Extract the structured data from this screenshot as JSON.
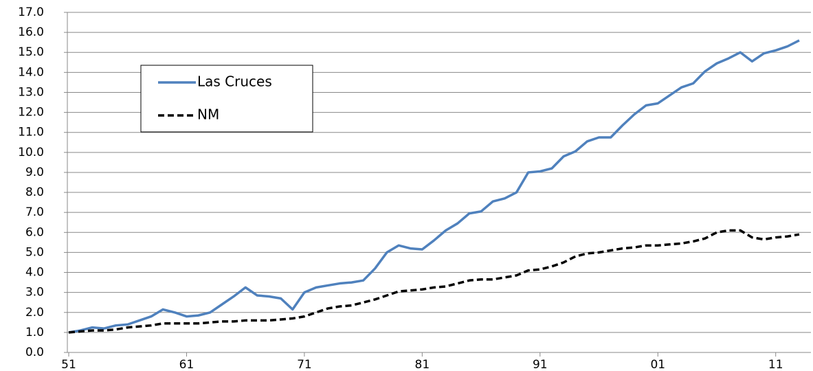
{
  "chart_data": {
    "type": "line",
    "categories": [
      "51",
      null,
      null,
      null,
      null,
      null,
      null,
      null,
      null,
      null,
      "61",
      null,
      null,
      null,
      null,
      null,
      null,
      null,
      null,
      null,
      "71",
      null,
      null,
      null,
      null,
      null,
      null,
      null,
      null,
      null,
      "81",
      null,
      null,
      null,
      null,
      null,
      null,
      null,
      null,
      null,
      "91",
      null,
      null,
      null,
      null,
      null,
      null,
      null,
      null,
      null,
      "01",
      null,
      null,
      null,
      null,
      null,
      null,
      null,
      null,
      null,
      "11",
      null,
      null
    ],
    "series": [
      {
        "name": "Las Cruces",
        "color": "#4f81bd",
        "style": "solid",
        "values": [
          1.0,
          1.1,
          1.25,
          1.2,
          1.35,
          1.4,
          1.6,
          1.8,
          2.15,
          2.0,
          1.8,
          1.85,
          2.0,
          2.4,
          2.8,
          3.25,
          2.85,
          2.8,
          2.7,
          2.15,
          3.0,
          3.25,
          3.35,
          3.45,
          3.5,
          3.6,
          4.2,
          5.0,
          5.35,
          5.2,
          5.15,
          5.6,
          6.1,
          6.45,
          6.95,
          7.05,
          7.55,
          7.7,
          8.0,
          9.0,
          9.05,
          9.2,
          9.8,
          10.05,
          10.55,
          10.75,
          10.75,
          11.35,
          11.9,
          12.35,
          12.45,
          12.85,
          13.25,
          13.45,
          14.05,
          14.45,
          14.7,
          15.0,
          14.55,
          14.95,
          15.1,
          15.3,
          15.6
        ]
      },
      {
        "name": "NM",
        "color": "#000000",
        "style": "dashed",
        "values": [
          1.0,
          1.05,
          1.1,
          1.1,
          1.15,
          1.25,
          1.3,
          1.35,
          1.45,
          1.45,
          1.45,
          1.45,
          1.5,
          1.55,
          1.55,
          1.6,
          1.6,
          1.6,
          1.65,
          1.7,
          1.8,
          2.0,
          2.2,
          2.3,
          2.35,
          2.5,
          2.65,
          2.85,
          3.05,
          3.1,
          3.15,
          3.25,
          3.3,
          3.45,
          3.6,
          3.65,
          3.65,
          3.75,
          3.85,
          4.1,
          4.15,
          4.3,
          4.5,
          4.8,
          4.95,
          5.0,
          5.1,
          5.2,
          5.25,
          5.35,
          5.35,
          5.4,
          5.45,
          5.55,
          5.7,
          6.0,
          6.1,
          6.1,
          5.75,
          5.65,
          5.75,
          5.8,
          5.9
        ]
      }
    ],
    "ylim": [
      0,
      17
    ],
    "yticks": [
      {
        "value": 0,
        "label": "0.0"
      },
      {
        "value": 1,
        "label": "1.0"
      },
      {
        "value": 2,
        "label": "2.0"
      },
      {
        "value": 3,
        "label": "3.0"
      },
      {
        "value": 4,
        "label": "4.0"
      },
      {
        "value": 5,
        "label": "5.0"
      },
      {
        "value": 6,
        "label": "6.0"
      },
      {
        "value": 7,
        "label": "7.0"
      },
      {
        "value": 8,
        "label": "8.0"
      },
      {
        "value": 9,
        "label": "9.0"
      },
      {
        "value": 10,
        "label": "10.0"
      },
      {
        "value": 11,
        "label": "11.0"
      },
      {
        "value": 12,
        "label": "12.0"
      },
      {
        "value": 13,
        "label": "13.0"
      },
      {
        "value": 14,
        "label": "14.0"
      },
      {
        "value": 15,
        "label": "15.0"
      },
      {
        "value": 16,
        "label": "16.0"
      },
      {
        "value": 17,
        "label": "17.0"
      }
    ],
    "grid": true,
    "legend": "upper-left"
  }
}
